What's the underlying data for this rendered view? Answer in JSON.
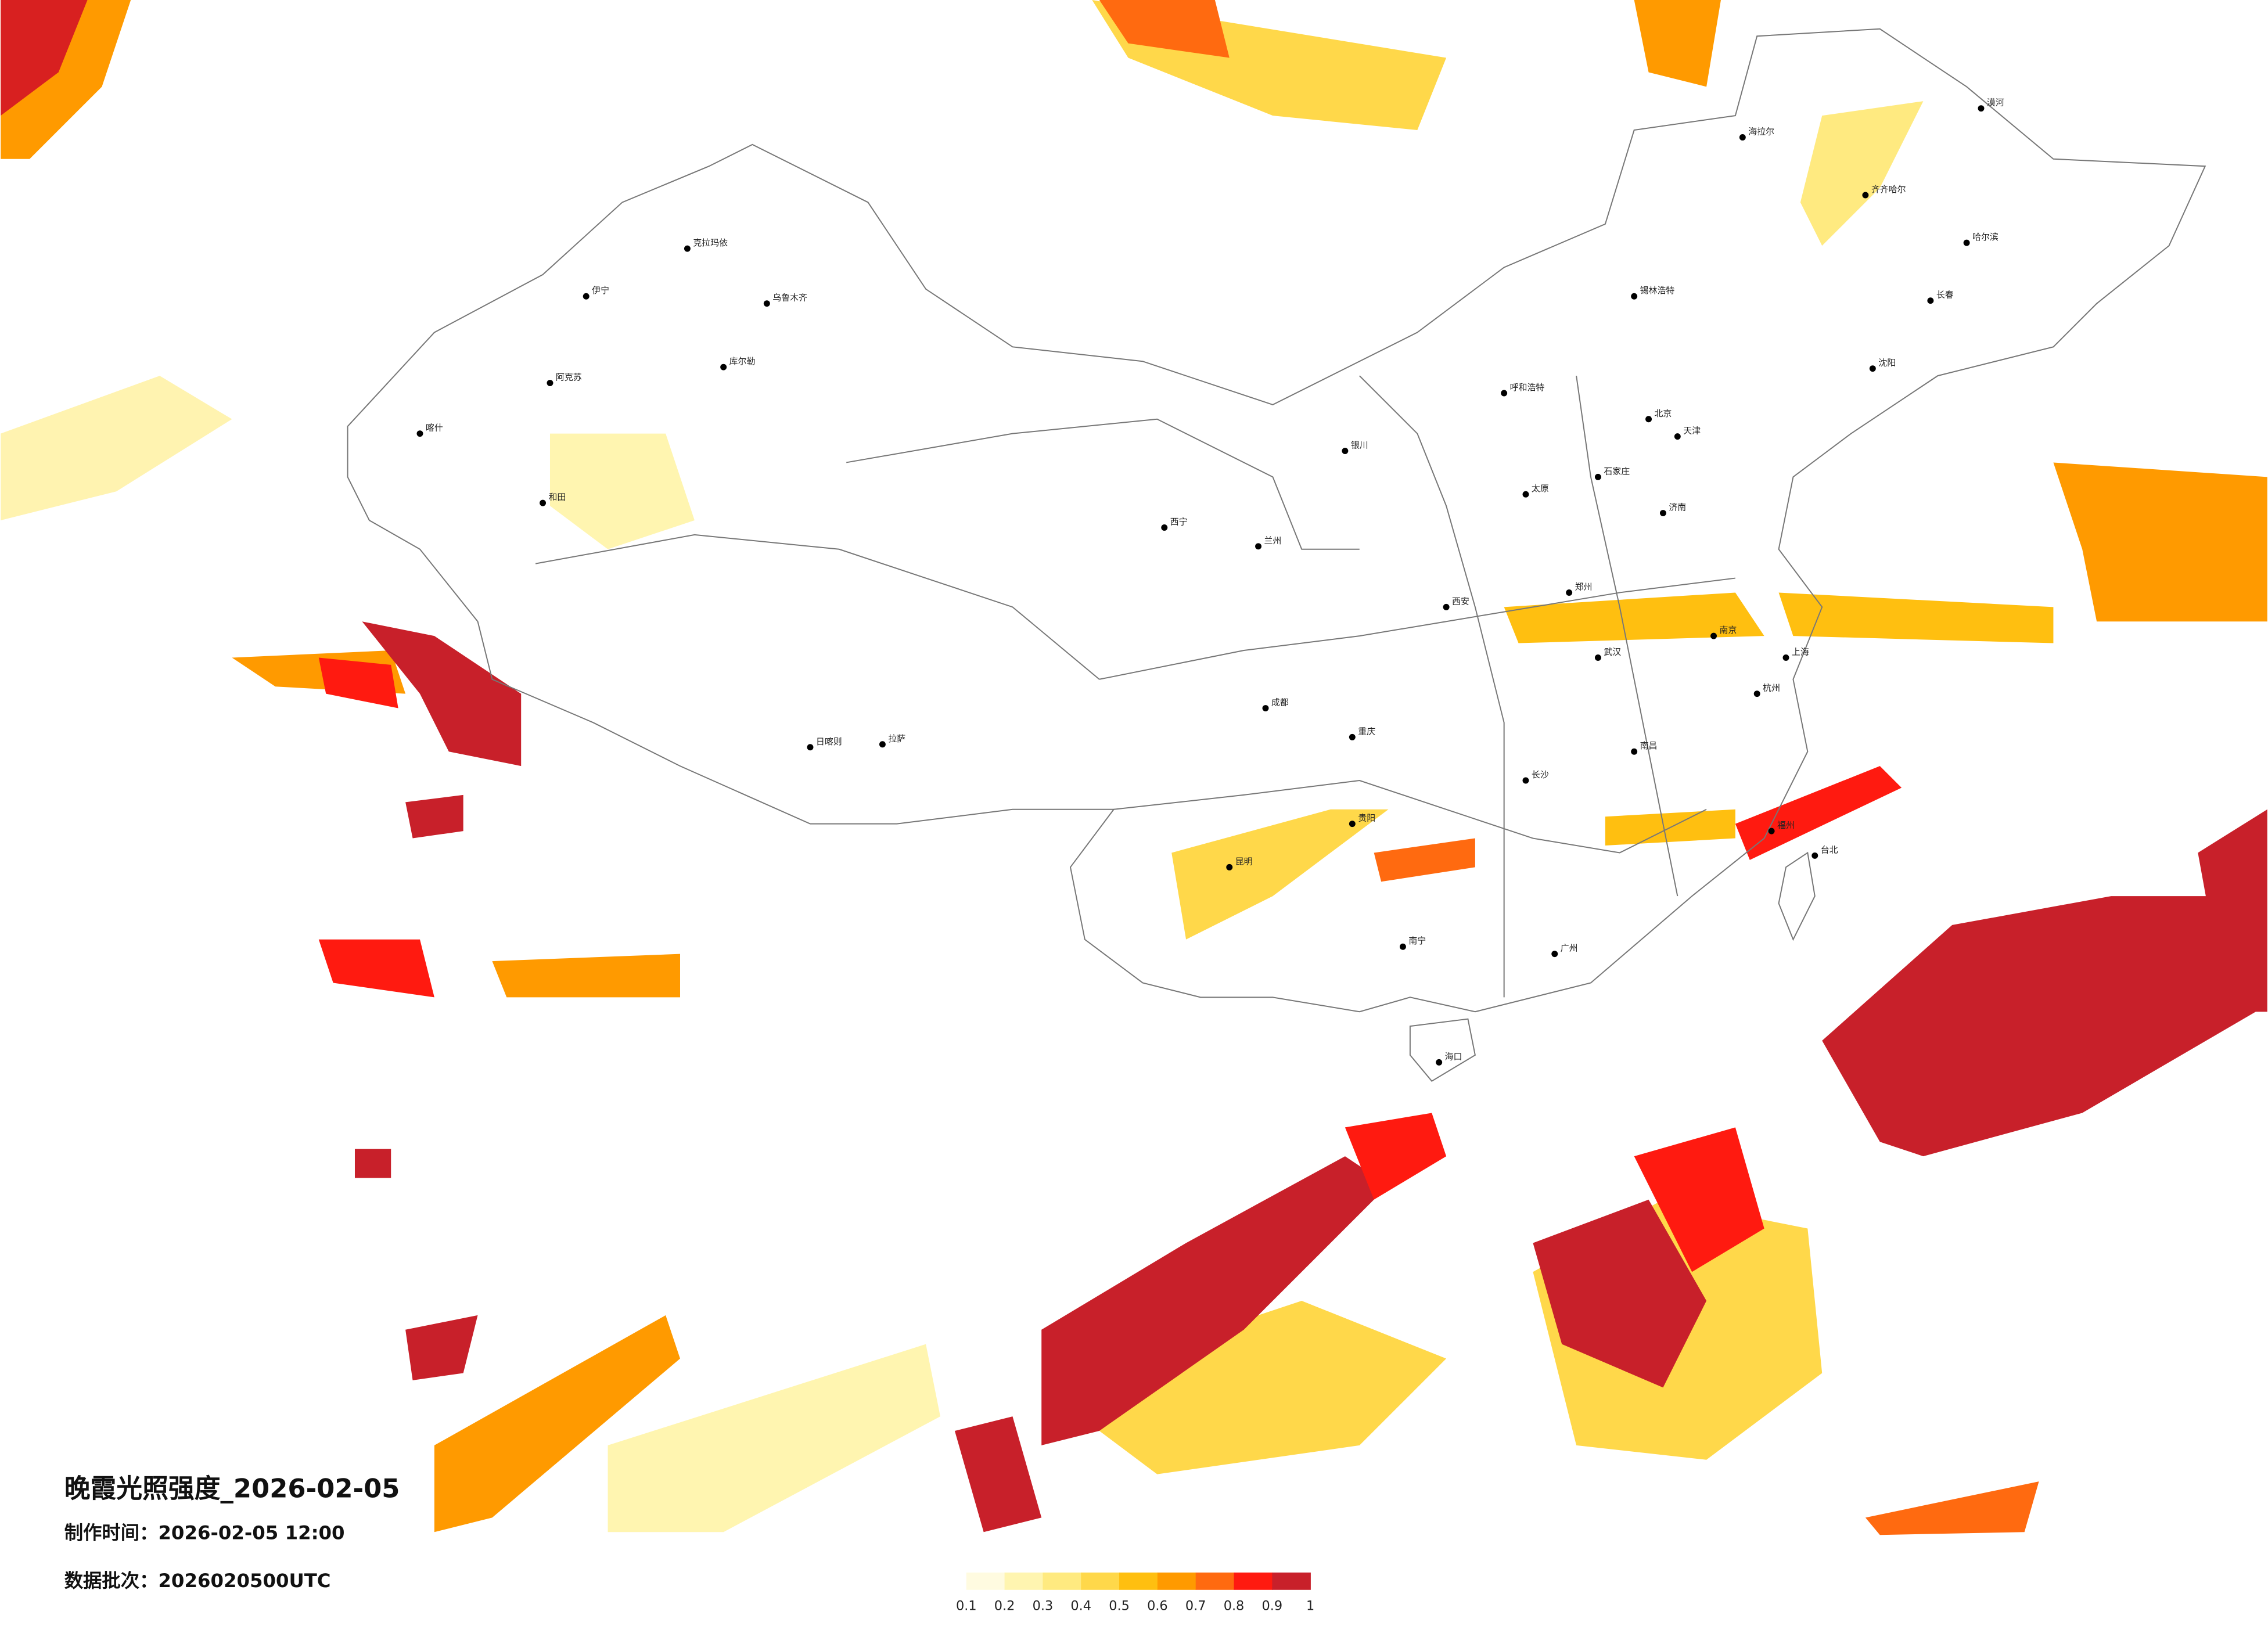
{
  "title": "晚霞光照强度_2026-02-05",
  "production_time": "制作时间：2026-02-05 12:00",
  "data_batch": "数据批次：2026020500UTC",
  "colorbar": {
    "colors": [
      "#fffbe0",
      "#fff5b0",
      "#ffea80",
      "#ffd84a",
      "#ffbf10",
      "#ff9a00",
      "#ff6a10",
      "#ff1a10",
      "#c8202a"
    ],
    "ticks": [
      0.1,
      0.2,
      0.3,
      0.4,
      0.5,
      0.6,
      0.7,
      0.8,
      0.9,
      1
    ]
  },
  "cities": [
    "克拉玛依",
    "乌鲁木齐",
    "伊宁",
    "阿克苏",
    "库尔勒",
    "喀什",
    "和田",
    "拉萨",
    "日喀则",
    "西宁",
    "兰州",
    "银川",
    "呼和浩特",
    "锡林浩特",
    "海拉尔",
    "漠河",
    "齐齐哈尔",
    "哈尔滨",
    "长春",
    "沈阳",
    "北京",
    "天津",
    "石家庄",
    "太原",
    "济南",
    "郑州",
    "西安",
    "成都",
    "重庆",
    "武汉",
    "南京",
    "上海",
    "杭州",
    "南昌",
    "长沙",
    "福州",
    "台北",
    "贵阳",
    "昆明",
    "南宁",
    "广州",
    "海口"
  ]
}
